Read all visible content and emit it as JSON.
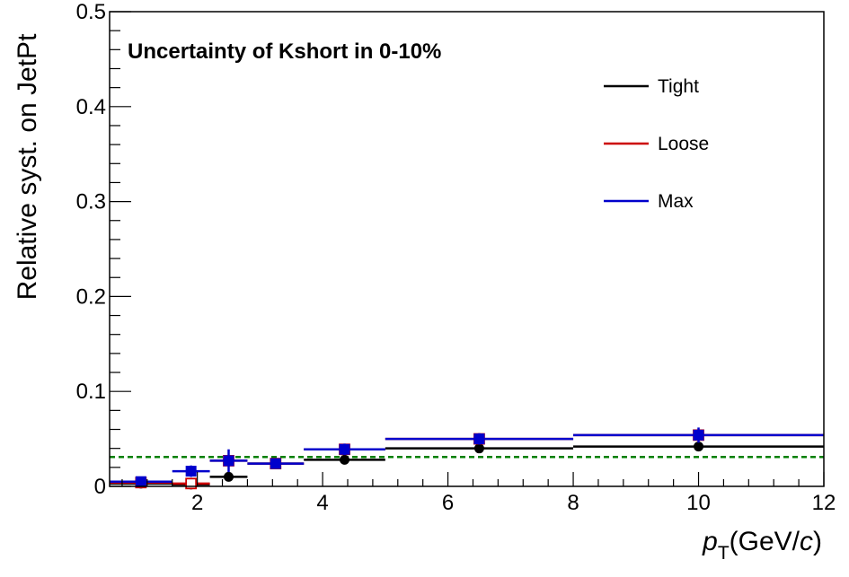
{
  "chart_data": {
    "type": "scatter",
    "title": "Uncertainty of Kshort in 0-10%",
    "ylabel": "Relative syst. on JetPt",
    "xlabel": {
      "main": "p",
      "sub": "T",
      "unit_prefix": "(GeV/",
      "unit_italic": "c",
      "unit_suffix": ")"
    },
    "xlim": [
      0.6,
      12
    ],
    "ylim": [
      0,
      0.5
    ],
    "x_ticks": [
      2,
      4,
      6,
      8,
      10,
      12
    ],
    "x_tick_labels": [
      "2",
      "4",
      "6",
      "8",
      "10",
      "12"
    ],
    "y_ticks": [
      0,
      0.1,
      0.2,
      0.3,
      0.4,
      0.5
    ],
    "y_tick_labels": [
      "0",
      "0.1",
      "0.2",
      "0.3",
      "0.4",
      "0.5"
    ],
    "bins": [
      0.6,
      1.6,
      2.2,
      2.8,
      3.7,
      5.0,
      8.0,
      12.0
    ],
    "reference_line": {
      "y": 0.031,
      "color": "#008000",
      "style": "dashed"
    },
    "legend_position": "top-right",
    "series": [
      {
        "name": "Tight",
        "color": "#000000",
        "marker": "circle-filled",
        "x": [
          1.1,
          1.9,
          2.5,
          3.25,
          4.35,
          6.5,
          10.0
        ],
        "y": [
          0.003,
          0.002,
          0.01,
          0.024,
          0.028,
          0.04,
          0.042
        ],
        "yerr": [
          0,
          0,
          0,
          0,
          0,
          0,
          0
        ]
      },
      {
        "name": "Loose",
        "color": "#cc0000",
        "marker": "square-open",
        "x": [
          1.1,
          1.9,
          2.5,
          3.25,
          4.35,
          6.5,
          10.0
        ],
        "y": [
          0.004,
          0.003,
          0.027,
          0.024,
          0.039,
          0.05,
          0.054
        ],
        "yerr": [
          0,
          0,
          0,
          0,
          0,
          0,
          0
        ]
      },
      {
        "name": "Max",
        "color": "#0000cc",
        "marker": "square-filled",
        "x": [
          1.1,
          1.9,
          2.5,
          3.25,
          4.35,
          6.5,
          10.0
        ],
        "y": [
          0.005,
          0.016,
          0.027,
          0.024,
          0.039,
          0.05,
          0.054
        ],
        "yerr": [
          0.004,
          0.006,
          0.012,
          0.004,
          0.006,
          0.006,
          0.008
        ]
      }
    ]
  }
}
